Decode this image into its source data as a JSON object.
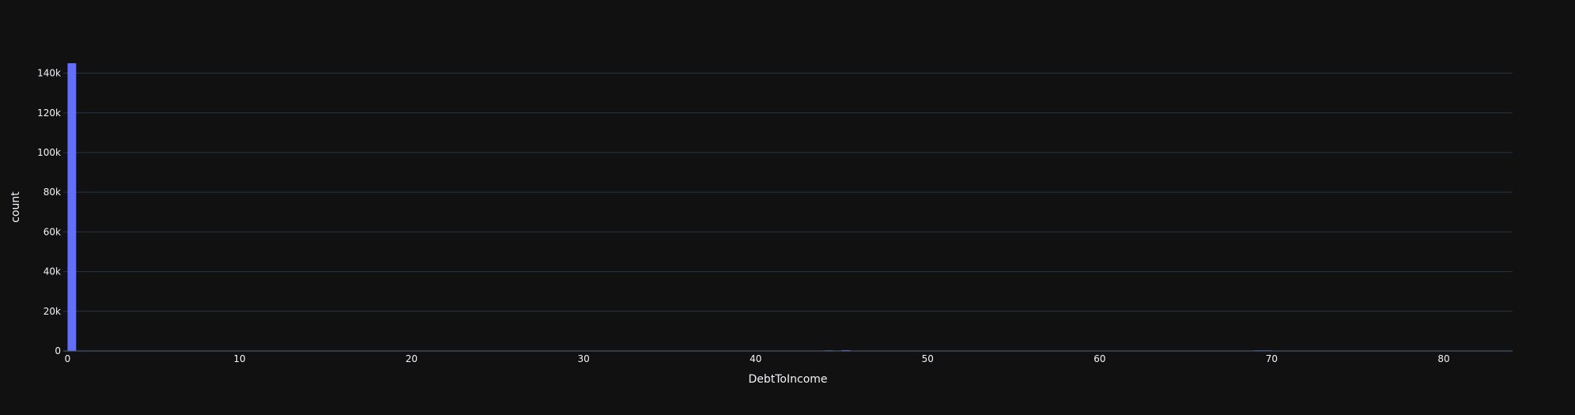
{
  "chart_data": {
    "type": "bar",
    "subtype": "histogram",
    "xlabel": "DebtToIncome",
    "ylabel": "count",
    "xlim": [
      -0.25,
      84
    ],
    "ylim": [
      0,
      145000
    ],
    "x_ticks": [
      0,
      10,
      20,
      30,
      40,
      50,
      60,
      70,
      80
    ],
    "x_tick_labels": [
      "0",
      "10",
      "20",
      "30",
      "40",
      "50",
      "60",
      "70",
      "80"
    ],
    "y_ticks": [
      0,
      20000,
      40000,
      60000,
      80000,
      100000,
      120000,
      140000
    ],
    "y_tick_labels": [
      "0",
      "20k",
      "40k",
      "60k",
      "80k",
      "100k",
      "120k",
      "140k"
    ],
    "bin_width": 0.5,
    "series": [
      {
        "bins_start": [
          0,
          2.5,
          5,
          10,
          15,
          20,
          25,
          30,
          35,
          40,
          44,
          45,
          69
        ],
        "bins_end": [
          0.5,
          5,
          10,
          15,
          20,
          25,
          30,
          35,
          40,
          42.5,
          44.5,
          45.5,
          70
        ],
        "values": [
          145000,
          150,
          150,
          150,
          150,
          150,
          150,
          150,
          150,
          150,
          300,
          400,
          300
        ]
      }
    ],
    "bar_color": "#636efa",
    "background_color": "#111111",
    "grid": true,
    "legend": "none"
  }
}
